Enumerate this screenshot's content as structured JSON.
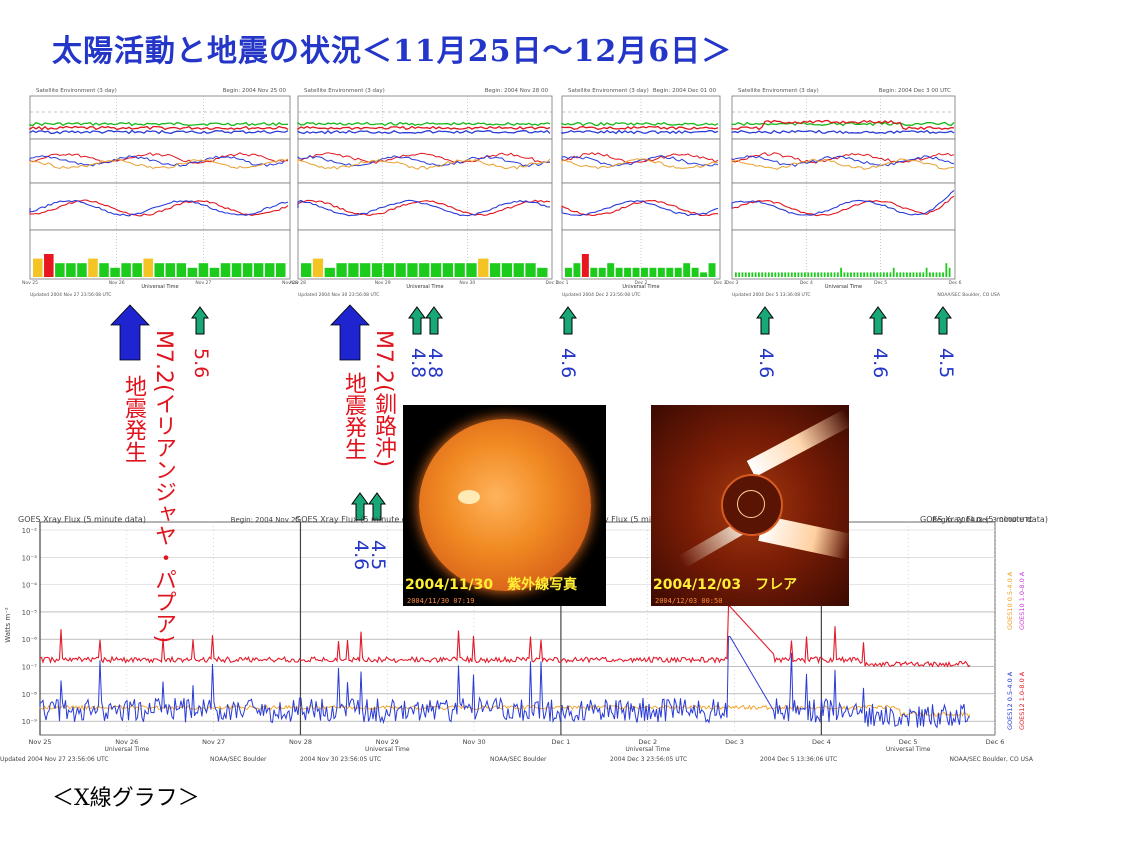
{
  "title": "太陽活動と地震の状況＜11月25日～12月6日＞",
  "caption": "＜X線グラフ＞",
  "colors": {
    "title": "#2436c8",
    "quake_big": "#e0141e",
    "mag_blue": "#2336c8",
    "arrow_big": "#1e24d0",
    "arrow_small": "#18a878",
    "goes_red": "#e21b2b",
    "goes_blue": "#2a3bd6",
    "goes_orange": "#f0a020"
  },
  "satellite_panels": [
    {
      "header_left": "Satellite Environment (3 day)",
      "header_right": "Begin: 2004 Nov 25 00",
      "footer_left": "Updated 2004 Nov 27 23:56:08 UTC",
      "footer_right": "NOAA/SEC Boulder, CO USA",
      "axis_title": "Universal Time",
      "day_labels": [
        "Nov 25",
        "Nov 26",
        "Nov 27",
        "Nov 28"
      ],
      "kp_values": [
        4,
        5,
        3,
        3,
        3,
        4,
        3,
        2,
        3,
        3,
        4,
        3,
        3,
        3,
        2,
        3,
        2,
        3,
        3,
        3,
        3,
        3,
        3
      ]
    },
    {
      "header_left": "Satellite Environment (3 day)",
      "header_right": "Begin: 2004 Nov 28 00",
      "footer_left": "Updated 2004 Nov 30 23:56:08 UTC",
      "footer_right": "NOAA/SEC Boulder, CO USA",
      "axis_title": "Universal Time",
      "day_labels": [
        "Nov 28",
        "Nov 29",
        "Nov 30",
        "Dec 1"
      ],
      "kp_values": [
        3,
        4,
        2,
        3,
        3,
        3,
        3,
        3,
        3,
        3,
        3,
        3,
        3,
        3,
        3,
        4,
        3,
        3,
        3,
        3,
        2
      ]
    },
    {
      "header_left": "Satellite Environment (3 day)",
      "header_right": "Begin: 2004 Dec 01 00",
      "footer_left": "Updated 2004 Dec 2 23:56:08 UTC",
      "footer_right": "NOAA/SEC Boulder, CO USA",
      "axis_title": "Universal Time",
      "day_labels": [
        "Dec 1",
        "Dec 2",
        "Dec 3"
      ],
      "kp_values": [
        2,
        3,
        5,
        2,
        2,
        3,
        2,
        2,
        2,
        2,
        2,
        2,
        2,
        2,
        3,
        2,
        1,
        3
      ]
    },
    {
      "header_left": "Satellite Environment (3 day)",
      "header_right": "Begin: 2004 Dec 3 00 UTC",
      "footer_left": "Updated 2004 Dec 5 13:36:08 UTC",
      "footer_right": "NOAA/SEC Boulder, CO USA",
      "axis_title": "Universal Time",
      "day_labels": [
        "Dec 3",
        "Dec 4",
        "Dec 5",
        "Dec 6"
      ],
      "kp_values": [
        1,
        1,
        1,
        1,
        1,
        1,
        1,
        1,
        1,
        1,
        1,
        1,
        1,
        1,
        1,
        1,
        1,
        1,
        1,
        1,
        1,
        1,
        1,
        1,
        1,
        1,
        1,
        1,
        1,
        1,
        1,
        1,
        2,
        1,
        1,
        1,
        1,
        1,
        1,
        1,
        1,
        1,
        1,
        1,
        1,
        1,
        1,
        1,
        2,
        1,
        1,
        1,
        1,
        1,
        1,
        1,
        1,
        1,
        2,
        1,
        1,
        1,
        1,
        1,
        3,
        2
      ]
    }
  ],
  "events": [
    {
      "label": "5.6",
      "magnitude": 5.6
    },
    {
      "label": "4.8",
      "magnitude": 4.8
    },
    {
      "label": "4.8",
      "magnitude": 4.8
    },
    {
      "label": "4.6",
      "magnitude": 4.6
    },
    {
      "label": "4.6",
      "magnitude": 4.6
    },
    {
      "label": "4.6",
      "magnitude": 4.6
    },
    {
      "label": "4.5",
      "magnitude": 4.5
    },
    {
      "label": "4.6",
      "magnitude": 4.6
    },
    {
      "label": "4.5",
      "magnitude": 4.5
    }
  ],
  "big_quakes": [
    {
      "text": "地震発生",
      "mag": "M7.2(イリアンジャヤ・パプア)",
      "magnitude": 7.2
    },
    {
      "text": "地震発生",
      "mag": "M7.2(釧路沖)",
      "magnitude": 7.2
    }
  ],
  "photos": [
    {
      "label": "2004/11/30　紫外線写真",
      "stamp": "2004/11/30 07:19"
    },
    {
      "label": "2004/12/03　フレア",
      "stamp": "2004/12/03 00:50"
    }
  ],
  "xray": {
    "headers": [
      {
        "left": "GOES Xray Flux (5 minute data)",
        "right": "Begin:  2004 Nov 25"
      },
      {
        "left": "GOES Xray Flux (5 minute data)",
        "right": ""
      },
      {
        "left": "GOES Xray Flux (5 minute data)",
        "right": ""
      },
      {
        "left": "GOES Xray Flux (5 minute data)",
        "right": "Begin:  2004 Dec 3 0000 UTC"
      }
    ],
    "ylabel": "Watts m⁻²",
    "yticks": [
      "10⁻²",
      "10⁻³",
      "10⁻⁴",
      "10⁻⁵",
      "10⁻⁶",
      "10⁻⁷",
      "10⁻⁸",
      "10⁻⁹"
    ],
    "day_labels": [
      "Nov 25",
      "Nov 26",
      "Nov 27",
      "Nov 28",
      "Nov 29",
      "Nov 30",
      "Dec 1",
      "Dec 2",
      "Dec 3",
      "Dec 4",
      "Dec 5",
      "Dec 6"
    ],
    "axis_title": "Universal Time",
    "footers": [
      "Updated 2004 Nov 27 23:56:06 UTC",
      "NOAA/SEC Boulder",
      "2004 Nov 30 23:56:05 UTC",
      "NOAA/SEC Boulder",
      "2004 Dec  3 23:56:05 UTC",
      "2004 Dec  5 13:36:06 UTC",
      "NOAA/SEC Boulder, CO USA"
    ],
    "legend": [
      "GOES12 0.5-4.0 A",
      "GOES10 0.5-4.0 A",
      "GOES12 1.0-8.0 A",
      "GOES10 1.0-8.0 A"
    ]
  },
  "chart_data": {
    "type": "line",
    "title": "GOES Xray Flux (5 minute data)",
    "xlabel": "Universal Time",
    "ylabel": "Watts m⁻²",
    "yscale": "log",
    "ylim": [
      1e-09,
      0.01
    ],
    "x": [
      "Nov 25",
      "Nov 26",
      "Nov 27",
      "Nov 28",
      "Nov 29",
      "Nov 30",
      "Dec 1",
      "Dec 2",
      "Dec 3",
      "Dec 4",
      "Dec 5",
      "Dec 6"
    ],
    "series": [
      {
        "name": "GOES12 1.0-8.0 A",
        "values": [
          2e-07,
          2.5e-07,
          2e-07,
          2.5e-07,
          2e-07,
          4e-07,
          8e-07,
          4e-07,
          1.5e-05,
          3e-07,
          2e-07,
          1.5e-07
        ]
      },
      {
        "name": "GOES12 0.5-4.0 A",
        "values": [
          3e-09,
          4e-09,
          3e-09,
          4e-09,
          3e-09,
          8e-09,
          1.5e-08,
          6e-09,
          2e-06,
          5e-09,
          4e-09,
          3e-09
        ]
      }
    ]
  }
}
